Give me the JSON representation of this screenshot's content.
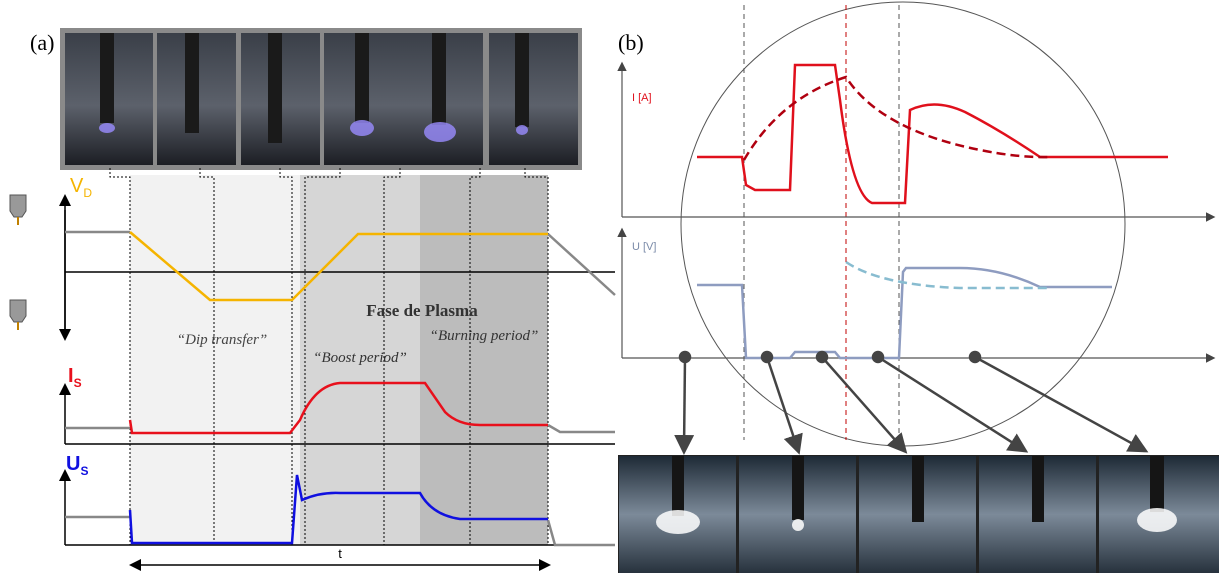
{
  "panel_a": {
    "label": "(a)",
    "axes": {
      "vd": {
        "main": "V",
        "sub": "D"
      },
      "is": {
        "main": "I",
        "sub": "S"
      },
      "us": {
        "main": "U",
        "sub": "S"
      }
    },
    "annotations": {
      "dip": "“Dip transfer”",
      "phase": "Fase de Plasma",
      "boost": "“Boost period”",
      "burning": "“Burning period”"
    },
    "time_axis": "t"
  },
  "panel_b": {
    "label": "(b)",
    "current_axis": "I [A]",
    "voltage_axis": "U [V]"
  }
}
